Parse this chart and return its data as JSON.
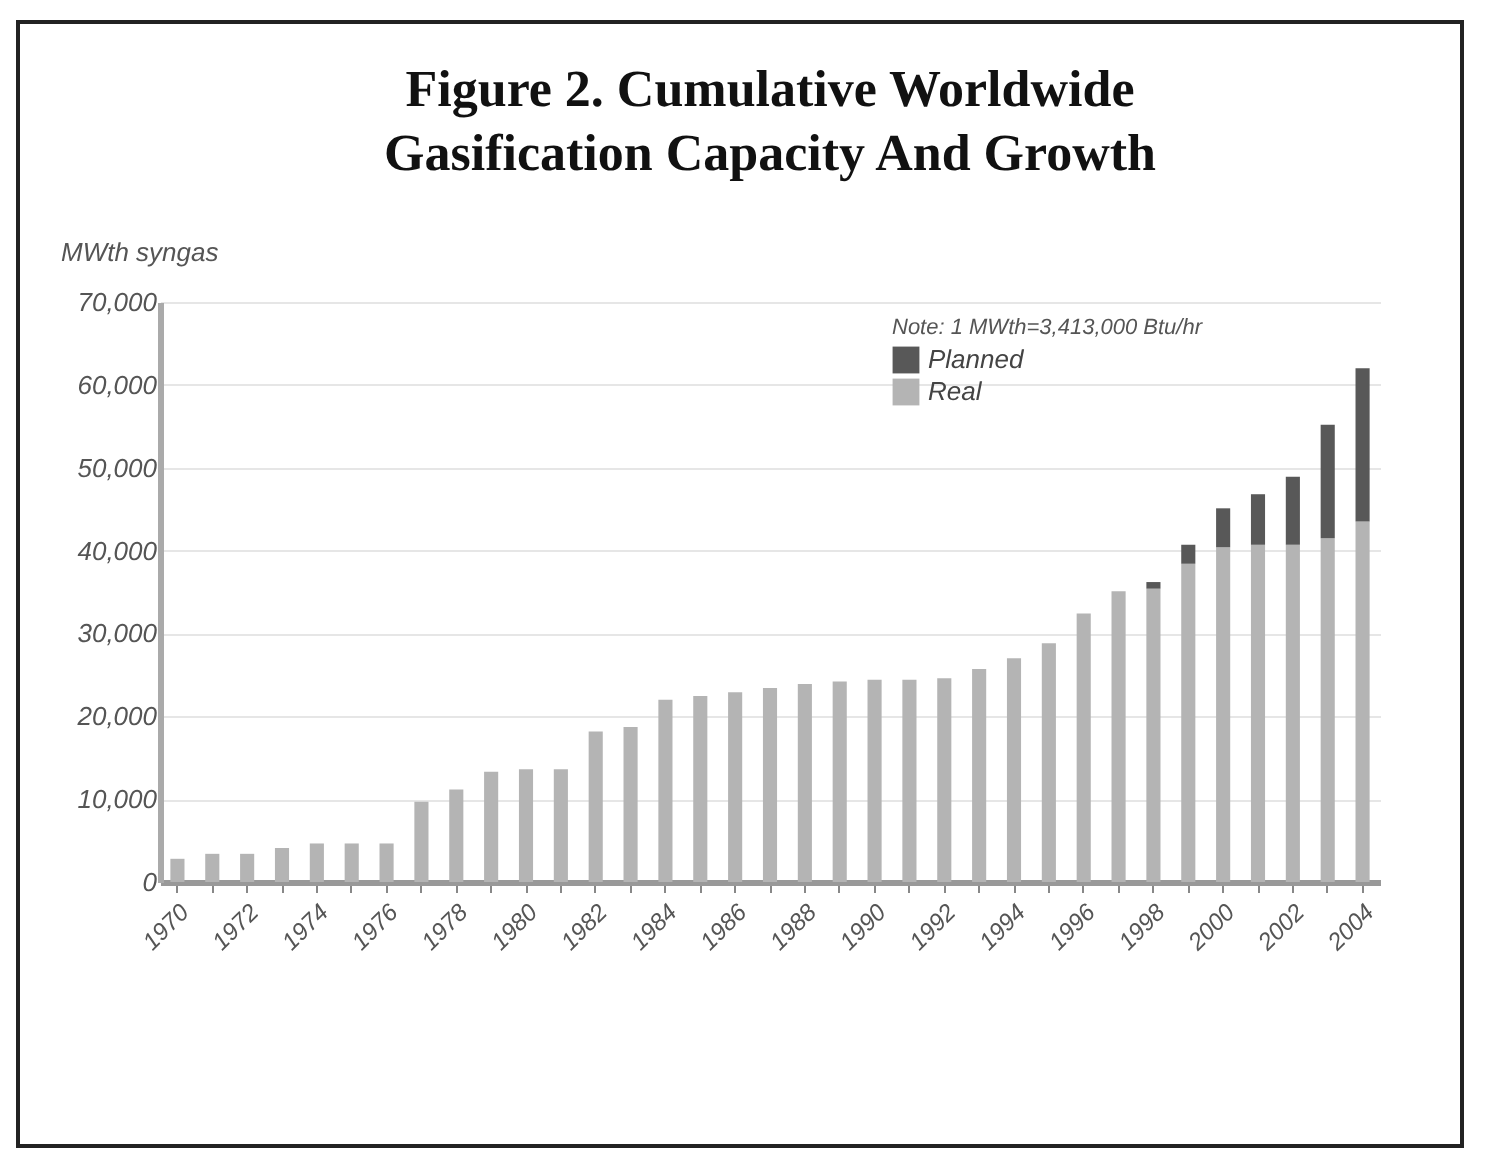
{
  "chart_data": {
    "type": "bar",
    "title": "Figure 2. Cumulative Worldwide Gasification Capacity And Growth",
    "ylabel": "MWth syngas",
    "annotations": [
      "Note: 1 MWth=3,413,000 Btu/hr"
    ],
    "categories": [
      "1970",
      null,
      "1972",
      null,
      "1974",
      null,
      "1976",
      null,
      "1978",
      null,
      "1980",
      null,
      "1982",
      null,
      "1984",
      null,
      "1986",
      null,
      "1988",
      null,
      "1990",
      null,
      "1992",
      null,
      "1994",
      null,
      "1996",
      null,
      "1998",
      null,
      "2000",
      null,
      "2002",
      null,
      "2004"
    ],
    "series": [
      {
        "name": "Real",
        "color": "#b4b4b4",
        "values": [
          2800,
          3400,
          3400,
          4100,
          4650,
          4650,
          4650,
          9700,
          11150,
          13300,
          13600,
          13600,
          18150,
          18700,
          22000,
          22450,
          22900,
          23400,
          23900,
          24200,
          24400,
          24400,
          24600,
          25700,
          27000,
          28800,
          32400,
          35100,
          35400,
          38400,
          40400,
          40700,
          40700,
          41500,
          43500
        ]
      },
      {
        "name": "Planned",
        "color": "#585858",
        "values": [
          null,
          null,
          null,
          null,
          null,
          null,
          null,
          null,
          null,
          null,
          null,
          null,
          null,
          null,
          null,
          null,
          null,
          null,
          null,
          null,
          null,
          null,
          null,
          null,
          null,
          null,
          null,
          null,
          800,
          2300,
          4700,
          6100,
          8200,
          13700,
          18500
        ]
      }
    ],
    "stacked": true,
    "ylim": [
      0,
      70000
    ],
    "yticks": [
      0,
      {
        "value": 10000,
        "label": "10,000"
      },
      {
        "value": 20000,
        "label": "20,000"
      },
      {
        "value": 30000,
        "label": "30,000"
      },
      {
        "value": 40000,
        "label": "40,000"
      },
      {
        "value": 50000,
        "label": "50,000"
      },
      {
        "value": 60000,
        "label": "60,000"
      },
      {
        "value": 70000,
        "label": "70,000"
      }
    ],
    "grid": "y",
    "legend": "top right"
  }
}
